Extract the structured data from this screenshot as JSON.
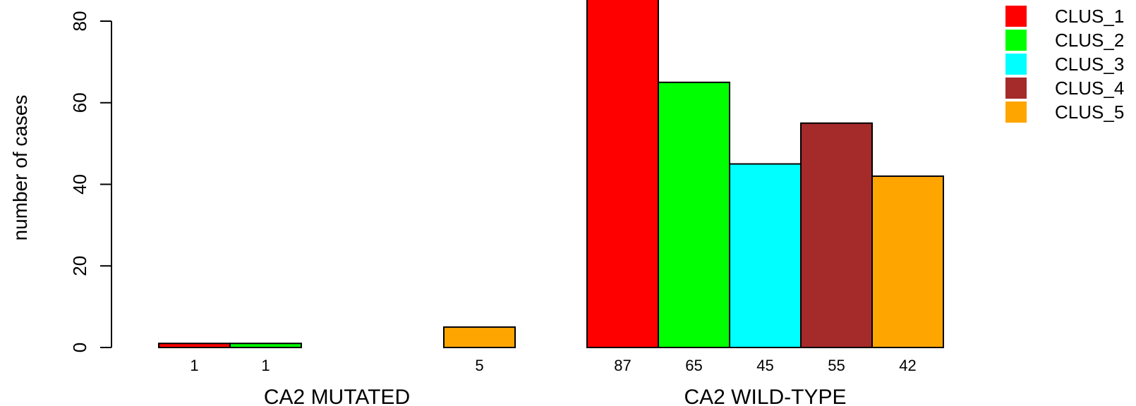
{
  "chart_data": {
    "type": "bar",
    "ylabel": "number of cases",
    "ylim": [
      0,
      80
    ],
    "yticks": [
      0,
      20,
      40,
      60,
      80
    ],
    "groups": [
      {
        "label": "CA2 MUTATED",
        "values": [
          1,
          1,
          0,
          0,
          5
        ]
      },
      {
        "label": "CA2 WILD-TYPE",
        "values": [
          87,
          65,
          45,
          55,
          42
        ]
      }
    ],
    "series": [
      {
        "name": "CLUS_1",
        "color": "#ff0000"
      },
      {
        "name": "CLUS_2",
        "color": "#00ff00"
      },
      {
        "name": "CLUS_3",
        "color": "#00ffff"
      },
      {
        "name": "CLUS_4",
        "color": "#a52a2a"
      },
      {
        "name": "CLUS_5",
        "color": "#ffa500"
      }
    ],
    "bar_value_labels": [
      [
        "1",
        "1",
        "",
        "",
        "5"
      ],
      [
        "87",
        "65",
        "45",
        "55",
        "42"
      ]
    ],
    "legend_position": "top-right",
    "grid": false
  }
}
